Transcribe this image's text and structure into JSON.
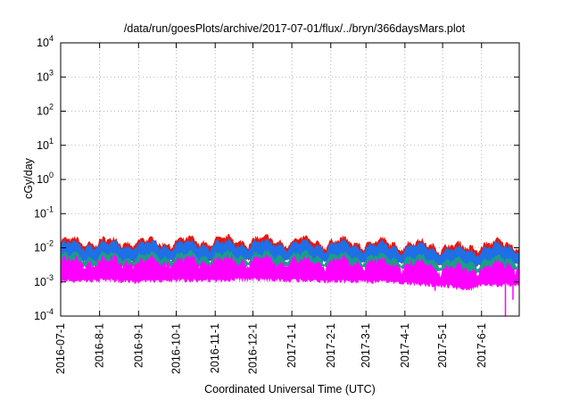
{
  "chart_data": {
    "type": "area",
    "title": "/data/run/goesPlots/archive/2017-07-01/flux/../bryn/366daysMars.plot",
    "xlabel": "Coordinated Universal Time (UTC)",
    "ylabel": "cGy/day",
    "yscale": "log",
    "ylim": [
      0.0001,
      10000
    ],
    "xlim": [
      "2016-07-01",
      "2017-07-01"
    ],
    "grid": true,
    "legend": "none",
    "y_ticks": [
      {
        "value": 0.0001,
        "base": "10",
        "exp": "-4"
      },
      {
        "value": 0.001,
        "base": "10",
        "exp": "-3"
      },
      {
        "value": 0.01,
        "base": "10",
        "exp": "-2"
      },
      {
        "value": 0.1,
        "base": "10",
        "exp": "-1"
      },
      {
        "value": 1,
        "base": "10",
        "exp": "0"
      },
      {
        "value": 10,
        "base": "10",
        "exp": "1"
      },
      {
        "value": 100,
        "base": "10",
        "exp": "2"
      },
      {
        "value": 1000,
        "base": "10",
        "exp": "3"
      },
      {
        "value": 10000,
        "base": "10",
        "exp": "4"
      }
    ],
    "x_ticks": [
      "2016-07-1",
      "2016-8-1",
      "2016-9-1",
      "2016-10-1",
      "2016-11-1",
      "2016-12-1",
      "2017-1-1",
      "2017-2-1",
      "2017-3-1",
      "2017-4-1",
      "2017-5-1",
      "2017-6-1"
    ],
    "x_tick_dates": [
      "2016-07-01",
      "2016-08-01",
      "2016-09-01",
      "2016-10-01",
      "2016-11-01",
      "2016-12-01",
      "2017-01-01",
      "2017-02-01",
      "2017-03-01",
      "2017-04-01",
      "2017-05-01",
      "2017-06-01"
    ],
    "series": [
      {
        "color": "#e8160c",
        "low": 0.0045,
        "high": 0.015
      },
      {
        "color": "#1f6fe6",
        "low": 0.0038,
        "high": 0.012
      },
      {
        "color": "#1a9e8a",
        "low": 0.003,
        "high": 0.0055
      },
      {
        "color": "#ff00ff",
        "low": 0.0009,
        "high": 0.004
      }
    ],
    "x": [
      "2016-07-01",
      "2016-08-01",
      "2016-09-01",
      "2016-10-01",
      "2016-11-01",
      "2016-12-01",
      "2017-01-01",
      "2017-02-01",
      "2017-03-01",
      "2017-04-01",
      "2017-05-01",
      "2017-05-20",
      "2017-06-01",
      "2017-07-01"
    ],
    "magenta_low": [
      0.0012,
      0.0013,
      0.0012,
      0.0013,
      0.0013,
      0.0014,
      0.0013,
      0.0012,
      0.0012,
      0.0011,
      0.0009,
      0.0007,
      0.0009,
      0.001
    ],
    "magenta_high": [
      0.0035,
      0.0036,
      0.0034,
      0.0036,
      0.0037,
      0.0038,
      0.0036,
      0.0034,
      0.0033,
      0.003,
      0.0025,
      0.002,
      0.0026,
      0.003
    ],
    "teal_low": [
      0.003,
      0.0031,
      0.003,
      0.0031,
      0.0032,
      0.0033,
      0.0031,
      0.003,
      0.0029,
      0.0027,
      0.0022,
      0.0018,
      0.0022,
      0.0025
    ],
    "teal_high": [
      0.0052,
      0.0054,
      0.0052,
      0.0054,
      0.0056,
      0.0058,
      0.0055,
      0.0052,
      0.005,
      0.0047,
      0.004,
      0.0033,
      0.004,
      0.0045
    ],
    "blue_low": [
      0.0045,
      0.0047,
      0.0045,
      0.0047,
      0.0049,
      0.0051,
      0.0048,
      0.0045,
      0.0043,
      0.004,
      0.0034,
      0.0028,
      0.0035,
      0.004
    ],
    "blue_high": [
      0.011,
      0.0115,
      0.011,
      0.0115,
      0.012,
      0.0125,
      0.0118,
      0.011,
      0.0105,
      0.0098,
      0.0085,
      0.007,
      0.009,
      0.01
    ],
    "red_high": [
      0.0135,
      0.014,
      0.0135,
      0.014,
      0.0148,
      0.0155,
      0.0145,
      0.0135,
      0.013,
      0.012,
      0.0105,
      0.009,
      0.0115,
      0.0125
    ]
  }
}
